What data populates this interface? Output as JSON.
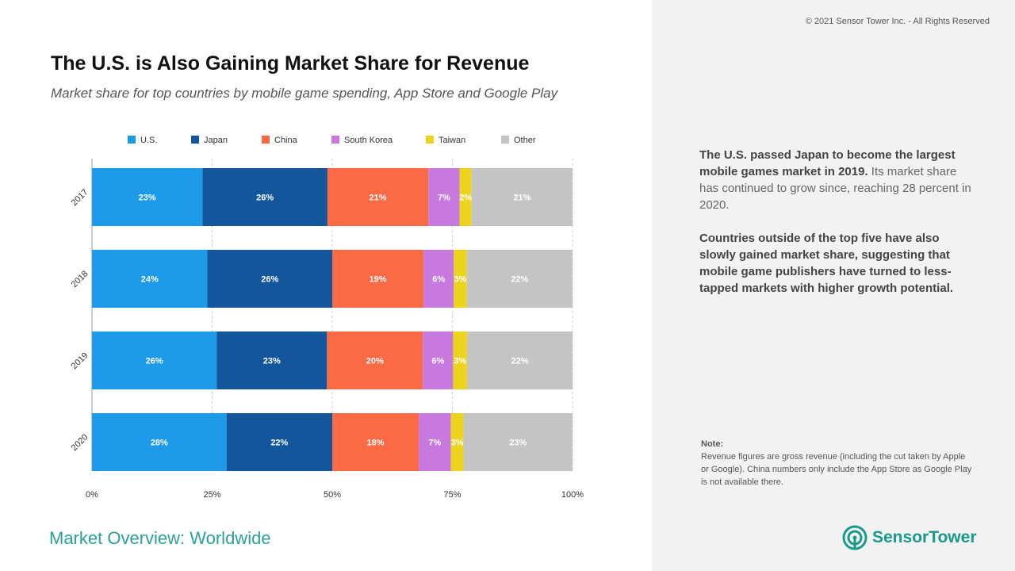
{
  "header": {
    "copyright": "© 2021 Sensor Tower Inc. - All Rights Reserved",
    "title": "The U.S. is Also Gaining Market Share for Revenue",
    "subtitle": "Market share for top countries by mobile game spending, App Store and Google Play"
  },
  "insights": {
    "p1_bold": "The U.S. passed Japan to become the largest mobile games market in 2019.",
    "p1_rest": " Its market share has continued to grow since, reaching 28 percent in 2020.",
    "p2_bold": "Countries outside of the top five have also slowly gained market share, suggesting that mobile game publishers have turned to less-tapped markets with higher growth potential."
  },
  "note": {
    "label": "Note:",
    "text": "Revenue figures are gross revenue (including the cut taken by Apple or Google). China numbers only include the App Store as Google Play is not available there."
  },
  "footer": {
    "section": "Market Overview: Worldwide",
    "logo_word1": "Sensor",
    "logo_word2": "Tower",
    "logo_icon": "sensor-tower-icon",
    "brand_color": "#1a9a8a"
  },
  "chart_data": {
    "type": "bar",
    "orientation": "horizontal",
    "stacked": true,
    "categories": [
      "2017",
      "2018",
      "2019",
      "2020"
    ],
    "series": [
      {
        "name": "U.S.",
        "color": "#1e9be8",
        "values": [
          23,
          24,
          26,
          28
        ],
        "labels": [
          "23%",
          "24%",
          "26%",
          "28%"
        ]
      },
      {
        "name": "Japan",
        "color": "#13569b",
        "values": [
          26,
          26,
          23,
          22
        ],
        "labels": [
          "26%",
          "26%",
          "23%",
          "22%"
        ]
      },
      {
        "name": "China",
        "color": "#f96a45",
        "values": [
          21,
          19,
          20,
          18
        ],
        "labels": [
          "21%",
          "19%",
          "20%",
          "18%"
        ]
      },
      {
        "name": "South Korea",
        "color": "#c879de",
        "values": [
          6.5,
          6.3,
          6.3,
          6.7
        ],
        "labels": [
          "7%",
          "6%",
          "6%",
          "7%"
        ]
      },
      {
        "name": "Taiwan",
        "color": "#ecd31e",
        "values": [
          2.5,
          2.7,
          2.9,
          2.6
        ],
        "labels": [
          "2%",
          "3%",
          "3%",
          "3%"
        ]
      },
      {
        "name": "Other",
        "color": "#c4c4c4",
        "values": [
          21,
          22,
          22,
          22.7
        ],
        "labels": [
          "21%",
          "22%",
          "22%",
          "23%"
        ]
      }
    ],
    "xlim": [
      0,
      100
    ],
    "x_ticks": [
      "0%",
      "25%",
      "50%",
      "75%",
      "100%"
    ],
    "grid": true,
    "legend_position": "top"
  }
}
